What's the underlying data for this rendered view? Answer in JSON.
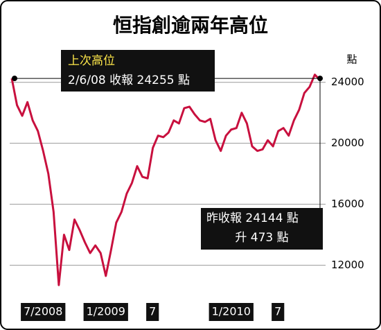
{
  "chart_data": {
    "type": "line",
    "title": "恒指創逾兩年高位",
    "y_unit": "點",
    "categories": [
      null,
      null,
      "7/2008",
      null,
      null,
      null,
      null,
      null,
      null,
      null,
      null,
      null,
      null,
      null,
      "1/2009",
      null,
      null,
      null,
      null,
      null,
      null,
      null,
      null,
      null,
      null,
      null,
      "7",
      null,
      null,
      null,
      null,
      null,
      null,
      null,
      null,
      null,
      null,
      null,
      "1/2010",
      null,
      null,
      null,
      null,
      null,
      null,
      null,
      null,
      null,
      null,
      null,
      "7",
      null,
      null,
      null,
      null,
      null,
      null,
      null,
      null,
      null
    ],
    "series": [
      {
        "color": "#c8103e",
        "values": [
          24255,
          22500,
          21800,
          22700,
          21500,
          20800,
          19500,
          18000,
          15500,
          10700,
          14000,
          13000,
          15000,
          14300,
          13500,
          12800,
          13300,
          12800,
          11300,
          13000,
          14800,
          15500,
          16700,
          17400,
          18500,
          17800,
          17700,
          19700,
          20500,
          20400,
          20700,
          21500,
          21300,
          22300,
          22400,
          21900,
          21500,
          21400,
          21600,
          20200,
          19500,
          20500,
          20900,
          21000,
          22000,
          21300,
          19800,
          19500,
          19600,
          20200,
          19800,
          20800,
          21000,
          20500,
          21500,
          22200,
          23300,
          23700,
          24500,
          24144
        ]
      }
    ],
    "ylim": [
      10300,
      24850
    ],
    "yticks": [
      12000,
      16000,
      20000,
      24000
    ],
    "grid": true,
    "annotations": {
      "high_title": "上次高位",
      "high_text": "2/6/08 收報 24255 點",
      "close_text": "昨收報 24144 點",
      "change_text": "升 473 點"
    }
  }
}
